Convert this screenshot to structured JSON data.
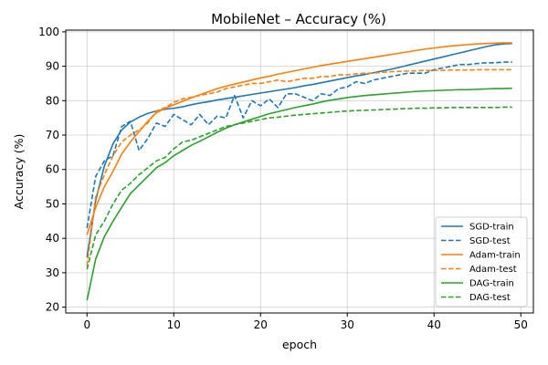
{
  "chart_data": {
    "type": "line",
    "title": "MobileNet – Accuracy (%)",
    "xlabel": "epoch",
    "ylabel": "Accuracy (%)",
    "xlim": [
      -2.45,
      51.45
    ],
    "ylim": [
      18.3,
      100.5
    ],
    "xticks": [
      0,
      10,
      20,
      30,
      40,
      50
    ],
    "yticks": [
      20,
      30,
      40,
      50,
      60,
      70,
      80,
      90,
      100
    ],
    "grid": true,
    "legend_position": "lower-right",
    "x": [
      0,
      1,
      2,
      3,
      4,
      5,
      6,
      7,
      8,
      9,
      10,
      11,
      12,
      13,
      14,
      15,
      16,
      17,
      18,
      19,
      20,
      21,
      22,
      23,
      24,
      25,
      26,
      27,
      28,
      29,
      30,
      31,
      32,
      33,
      34,
      35,
      36,
      37,
      38,
      39,
      40,
      41,
      42,
      43,
      44,
      45,
      46,
      47,
      48,
      49
    ],
    "series": [
      {
        "name": "SGD-train",
        "color": "#1f77b4",
        "dash": "solid",
        "values": [
          34.5,
          51,
          61,
          67.5,
          71.5,
          73.8,
          75.2,
          76.3,
          77,
          77.5,
          77.8,
          78.2,
          78.8,
          79.3,
          79.7,
          80.2,
          80.6,
          81,
          81.4,
          81.8,
          82.2,
          82.6,
          83,
          83.4,
          83.8,
          84.3,
          84.7,
          85.2,
          85.7,
          86.2,
          86.7,
          87.2,
          87.6,
          88.1,
          88.6,
          89.1,
          89.7,
          90.3,
          90.9,
          91.5,
          92.1,
          92.7,
          93.3,
          93.9,
          94.5,
          95.1,
          95.7,
          96.2,
          96.5,
          96.6
        ]
      },
      {
        "name": "SGD-test",
        "color": "#1f77b4",
        "dash": "dashed",
        "values": [
          43,
          58,
          62.5,
          64,
          72.5,
          74,
          65.5,
          69,
          73.5,
          72.5,
          76,
          74.5,
          73,
          76,
          73,
          75.5,
          75,
          81.5,
          75,
          80,
          78.5,
          80.5,
          78,
          82,
          82,
          81,
          80,
          82,
          81.5,
          83.5,
          84,
          85.5,
          85,
          86,
          86.5,
          87,
          87.5,
          88,
          88,
          88,
          89,
          89.5,
          90,
          90.5,
          90.5,
          90.8,
          91,
          91,
          91.2,
          91.2
        ]
      },
      {
        "name": "Adam-train",
        "color": "#ff7f0e",
        "dash": "solid",
        "values": [
          41,
          49,
          55,
          59.5,
          64.5,
          68,
          71,
          74,
          76.5,
          77.8,
          78.8,
          79.8,
          80.8,
          81.7,
          82.6,
          83.5,
          84.2,
          84.8,
          85.4,
          86,
          86.6,
          87.1,
          87.7,
          88.2,
          88.7,
          89.2,
          89.7,
          90.2,
          90.6,
          91,
          91.4,
          91.8,
          92.2,
          92.6,
          93,
          93.4,
          93.8,
          94.2,
          94.6,
          95,
          95.3,
          95.6,
          95.9,
          96.1,
          96.3,
          96.5,
          96.6,
          96.7,
          96.8,
          96.8
        ]
      },
      {
        "name": "Adam-test",
        "color": "#ff7f0e",
        "dash": "dashed",
        "values": [
          32,
          52,
          58.5,
          64,
          68,
          70,
          71.5,
          73.5,
          77,
          78,
          79.5,
          80.5,
          81,
          81.5,
          82,
          82.5,
          83.5,
          84,
          84.5,
          85,
          85,
          85.5,
          86,
          85.5,
          86,
          86.5,
          86.5,
          87,
          87,
          87.5,
          87.5,
          87.8,
          88,
          88,
          88.2,
          88.4,
          88.5,
          88.6,
          88.7,
          88.8,
          88.8,
          88.8,
          88.9,
          88.9,
          88.9,
          89,
          89,
          89,
          89,
          89
        ]
      },
      {
        "name": "DAG-train",
        "color": "#2ca02c",
        "dash": "solid",
        "values": [
          22,
          34,
          40.5,
          45,
          49,
          53,
          55.5,
          58,
          60.5,
          62,
          64,
          65.5,
          67,
          68.2,
          69.5,
          70.8,
          72,
          73,
          73.8,
          74.6,
          75.4,
          76.2,
          76.8,
          77.4,
          78,
          78.5,
          79,
          79.6,
          80.1,
          80.5,
          80.9,
          81.2,
          81.5,
          81.7,
          81.9,
          82.1,
          82.3,
          82.5,
          82.7,
          82.8,
          82.9,
          83,
          83.1,
          83.2,
          83.2,
          83.3,
          83.4,
          83.5,
          83.5,
          83.6
        ]
      },
      {
        "name": "DAG-test",
        "color": "#2ca02c",
        "dash": "dashed",
        "values": [
          31,
          41,
          45,
          50,
          54,
          56,
          58.5,
          60.5,
          62.5,
          63.5,
          66,
          68,
          68.5,
          69.5,
          70.5,
          71.5,
          72.5,
          73,
          73.5,
          74,
          74.5,
          75,
          75.2,
          75.5,
          75.8,
          76,
          76.2,
          76.4,
          76.6,
          76.8,
          77,
          77.1,
          77.2,
          77.3,
          77.4,
          77.5,
          77.6,
          77.7,
          77.8,
          77.8,
          77.9,
          77.9,
          78,
          78,
          78,
          78,
          78,
          78,
          78.1,
          78.1
        ]
      }
    ]
  }
}
